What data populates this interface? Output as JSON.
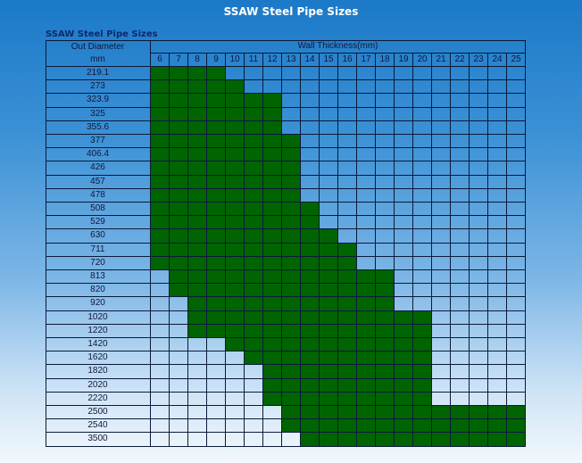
{
  "title": "SSAW Steel Pipe Sizes",
  "subtitle": "SSAW Steel Pipe Sizes",
  "chart_data": {
    "type": "table",
    "title": "SSAW Steel Pipe Sizes",
    "row_header": [
      "Out Diameter",
      "mm"
    ],
    "col_header": "Wall Thickness(mm)",
    "thickness": [
      6,
      7,
      8,
      9,
      10,
      11,
      12,
      13,
      14,
      15,
      16,
      17,
      18,
      19,
      20,
      21,
      22,
      23,
      24,
      25
    ],
    "rows": [
      {
        "od": "219.1",
        "range": [
          6,
          9
        ]
      },
      {
        "od": "273",
        "range": [
          6,
          10
        ]
      },
      {
        "od": "323.9",
        "range": [
          6,
          12
        ]
      },
      {
        "od": "325",
        "range": [
          6,
          12
        ]
      },
      {
        "od": "355.6",
        "range": [
          6,
          12
        ]
      },
      {
        "od": "377",
        "range": [
          6,
          13
        ]
      },
      {
        "od": "406.4",
        "range": [
          6,
          13
        ]
      },
      {
        "od": "426",
        "range": [
          6,
          13
        ]
      },
      {
        "od": "457",
        "range": [
          6,
          13
        ]
      },
      {
        "od": "478",
        "range": [
          6,
          13
        ]
      },
      {
        "od": "508",
        "range": [
          6,
          14
        ]
      },
      {
        "od": "529",
        "range": [
          6,
          14
        ]
      },
      {
        "od": "630",
        "range": [
          6,
          15
        ]
      },
      {
        "od": "711",
        "range": [
          6,
          16
        ]
      },
      {
        "od": "720",
        "range": [
          6,
          16
        ]
      },
      {
        "od": "813",
        "range": [
          7,
          18
        ]
      },
      {
        "od": "820",
        "range": [
          7,
          18
        ]
      },
      {
        "od": "920",
        "range": [
          8,
          18
        ]
      },
      {
        "od": "1020",
        "range": [
          8,
          20
        ]
      },
      {
        "od": "1220",
        "range": [
          8,
          20
        ]
      },
      {
        "od": "1420",
        "range": [
          10,
          20
        ]
      },
      {
        "od": "1620",
        "range": [
          11,
          20
        ]
      },
      {
        "od": "1820",
        "range": [
          12,
          20
        ]
      },
      {
        "od": "2020",
        "range": [
          12,
          20
        ]
      },
      {
        "od": "2220",
        "range": [
          12,
          20
        ]
      },
      {
        "od": "2500",
        "range": [
          13,
          25
        ]
      },
      {
        "od": "2540",
        "range": [
          13,
          25
        ]
      },
      {
        "od": "3500",
        "range": [
          14,
          25
        ]
      }
    ]
  },
  "colors": {
    "available": "#006400",
    "grid": "#0b1a3a"
  }
}
